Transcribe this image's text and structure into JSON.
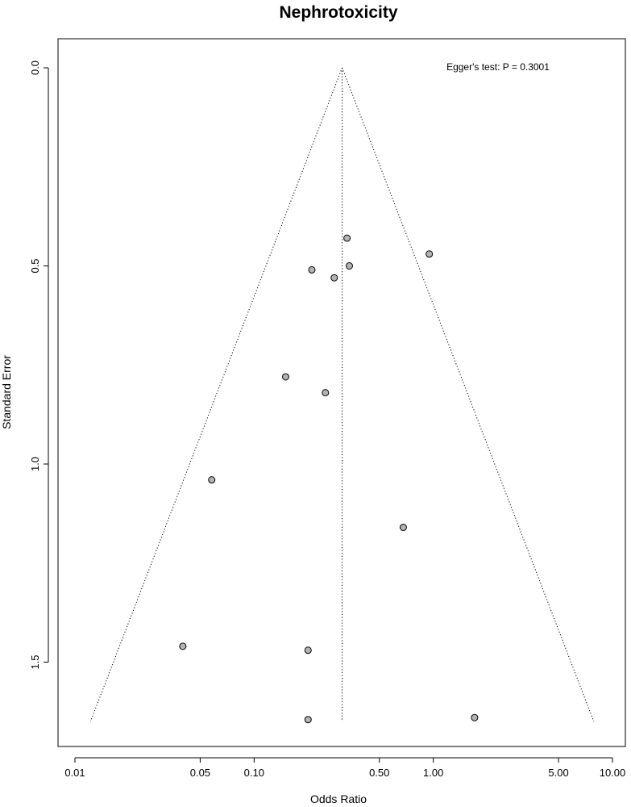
{
  "chart_data": {
    "type": "scatter",
    "title": "Nephrotoxicity",
    "xlabel": "Odds Ratio",
    "ylabel": "Standard Error",
    "x_scale": "log",
    "y_reversed": true,
    "xlim": [
      0.01,
      10
    ],
    "ylim": [
      0,
      1.65
    ],
    "x_ticks": [
      0.01,
      0.05,
      0.1,
      0.5,
      1.0,
      5.0,
      10.0
    ],
    "x_tick_labels": [
      "0.01",
      "0.05",
      "0.10",
      "0.50",
      "1.00",
      "5.00",
      "10.00"
    ],
    "y_ticks": [
      0.0,
      0.5,
      1.0,
      1.5
    ],
    "y_tick_labels": [
      "0.0",
      "0.5",
      "1.0",
      "1.5"
    ],
    "pooled_or": 0.31,
    "funnel_se_max": 1.65,
    "annotation": "Egger's test: P = 0.3001",
    "points": [
      {
        "or": 0.33,
        "se": 0.43
      },
      {
        "or": 0.95,
        "se": 0.47
      },
      {
        "or": 0.34,
        "se": 0.5
      },
      {
        "or": 0.21,
        "se": 0.51
      },
      {
        "or": 0.28,
        "se": 0.53
      },
      {
        "or": 0.15,
        "se": 0.78
      },
      {
        "or": 0.25,
        "se": 0.82
      },
      {
        "or": 0.058,
        "se": 1.04
      },
      {
        "or": 0.68,
        "se": 1.16
      },
      {
        "or": 0.04,
        "se": 1.46
      },
      {
        "or": 0.2,
        "se": 1.47
      },
      {
        "or": 0.2,
        "se": 1.645
      },
      {
        "or": 1.7,
        "se": 1.64
      }
    ],
    "grid": false,
    "point_fill": "#b3b3b3",
    "point_stroke": "#000000"
  }
}
